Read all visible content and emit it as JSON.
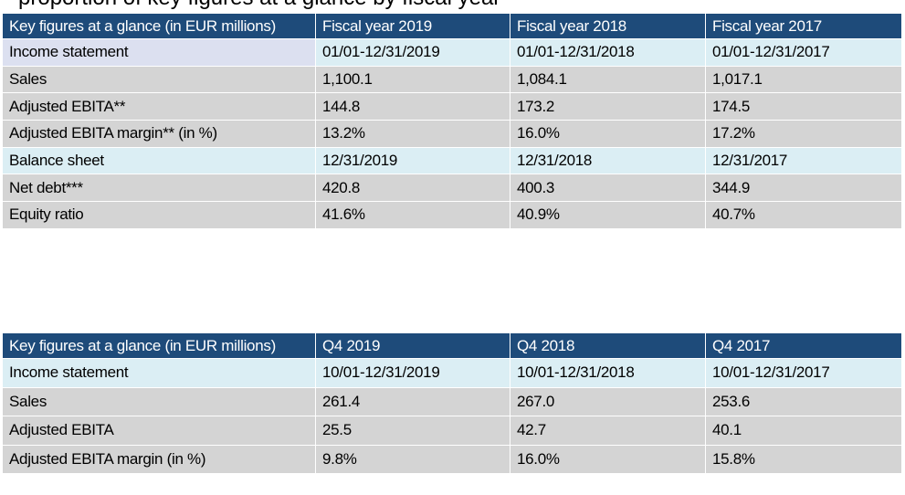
{
  "heading_fragment": "proportion of key figures at a glance by fiscal year",
  "table1": {
    "headers": [
      "Key figures at a glance (in EUR millions)",
      "Fiscal year 2019",
      "Fiscal year 2018",
      "Fiscal year 2017"
    ],
    "rows": [
      {
        "type": "section",
        "cells": [
          "Income statement",
          "01/01-12/31/2019",
          "01/01-12/31/2018",
          "01/01-12/31/2017"
        ]
      },
      {
        "type": "value",
        "cells": [
          "Sales",
          "1,100.1",
          "1,084.1",
          "1,017.1"
        ]
      },
      {
        "type": "value",
        "cells": [
          "Adjusted EBITA**",
          "144.8",
          "173.2",
          "174.5"
        ]
      },
      {
        "type": "value",
        "cells": [
          "Adjusted EBITA margin** (in %)",
          "13.2%",
          "16.0%",
          "17.2%"
        ]
      },
      {
        "type": "section",
        "cells": [
          "Balance sheet",
          "12/31/2019",
          "12/31/2018",
          "12/31/2017"
        ]
      },
      {
        "type": "value",
        "cells": [
          "Net debt***",
          "420.8",
          "400.3",
          "344.9"
        ]
      },
      {
        "type": "value",
        "cells": [
          "Equity ratio",
          "41.6%",
          "40.9%",
          "40.7%"
        ]
      }
    ]
  },
  "table2": {
    "headers": [
      "Key figures at a glance (in EUR millions)",
      "Q4 2019",
      "Q4 2018",
      "Q4 2017"
    ],
    "rows": [
      {
        "type": "section",
        "cells": [
          "Income statement",
          "10/01-12/31/2019",
          "10/01-12/31/2018",
          "10/01-12/31/2017"
        ]
      },
      {
        "type": "value",
        "cells": [
          "Sales",
          "261.4",
          "267.0",
          "253.6"
        ]
      },
      {
        "type": "value",
        "cells": [
          "Adjusted EBITA",
          "25.5",
          "42.7",
          "40.1"
        ]
      },
      {
        "type": "value",
        "cells": [
          "Adjusted EBITA margin (in %)",
          "9.8%",
          "16.0%",
          "15.8%"
        ]
      }
    ]
  }
}
